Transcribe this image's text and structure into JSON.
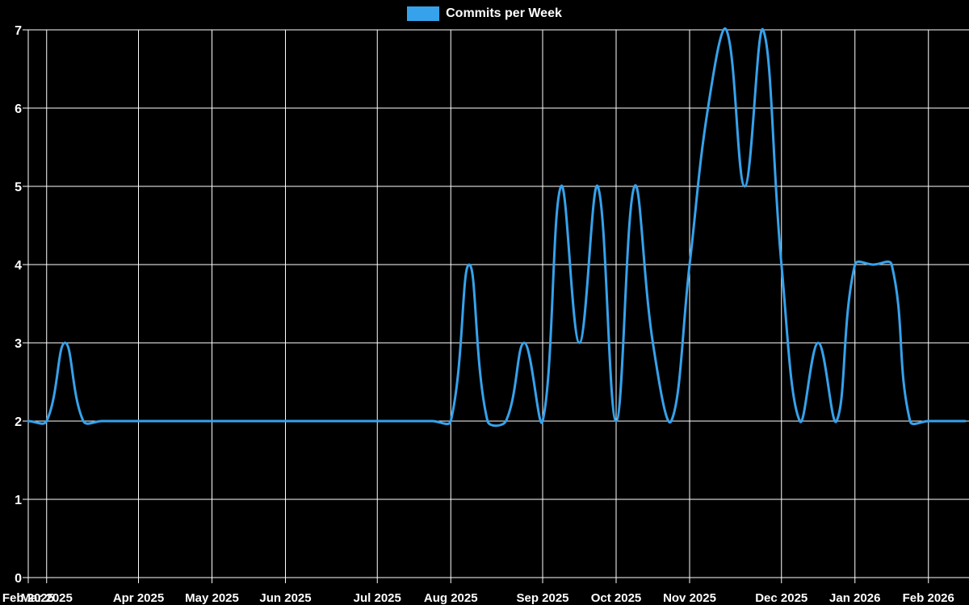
{
  "legend": {
    "label": "Commits per Week"
  },
  "colors": {
    "line": "#36a2eb",
    "grid": "#ffffff",
    "label": "#ffffff",
    "background": "#000000"
  },
  "chart_data": {
    "type": "line",
    "title": "",
    "x_unit": "week",
    "series": [
      {
        "name": "Commits per Week",
        "values": [
          2,
          2,
          3,
          2,
          2,
          2,
          2,
          2,
          2,
          2,
          2,
          2,
          2,
          2,
          2,
          2,
          2,
          2,
          2,
          2,
          2,
          2,
          2,
          2,
          4,
          2,
          2,
          3,
          2,
          5,
          3,
          5,
          2,
          5,
          3,
          2,
          4,
          6,
          7,
          5,
          7,
          4,
          2,
          3,
          2,
          4,
          4,
          4,
          2,
          2,
          2,
          2
        ]
      }
    ],
    "y_ticks": [
      0,
      1,
      2,
      3,
      4,
      5,
      6,
      7
    ],
    "ylim": [
      0,
      7
    ],
    "grid": true,
    "smooth": true,
    "legend_position": "top-center",
    "x_tick_labels": [
      {
        "label": "Feb 2025",
        "week": 0
      },
      {
        "label": "Mar 2025",
        "week": 1
      },
      {
        "label": "Apr 2025",
        "week": 6
      },
      {
        "label": "May 2025",
        "week": 10
      },
      {
        "label": "Jun 2025",
        "week": 14
      },
      {
        "label": "Jul 2025",
        "week": 19
      },
      {
        "label": "Aug 2025",
        "week": 23
      },
      {
        "label": "Sep 2025",
        "week": 28
      },
      {
        "label": "Oct 2025",
        "week": 32
      },
      {
        "label": "Nov 2025",
        "week": 36
      },
      {
        "label": "Dec 2025",
        "week": 41
      },
      {
        "label": "Jan 2026",
        "week": 45
      },
      {
        "label": "Feb 2026",
        "week": 49
      }
    ]
  }
}
